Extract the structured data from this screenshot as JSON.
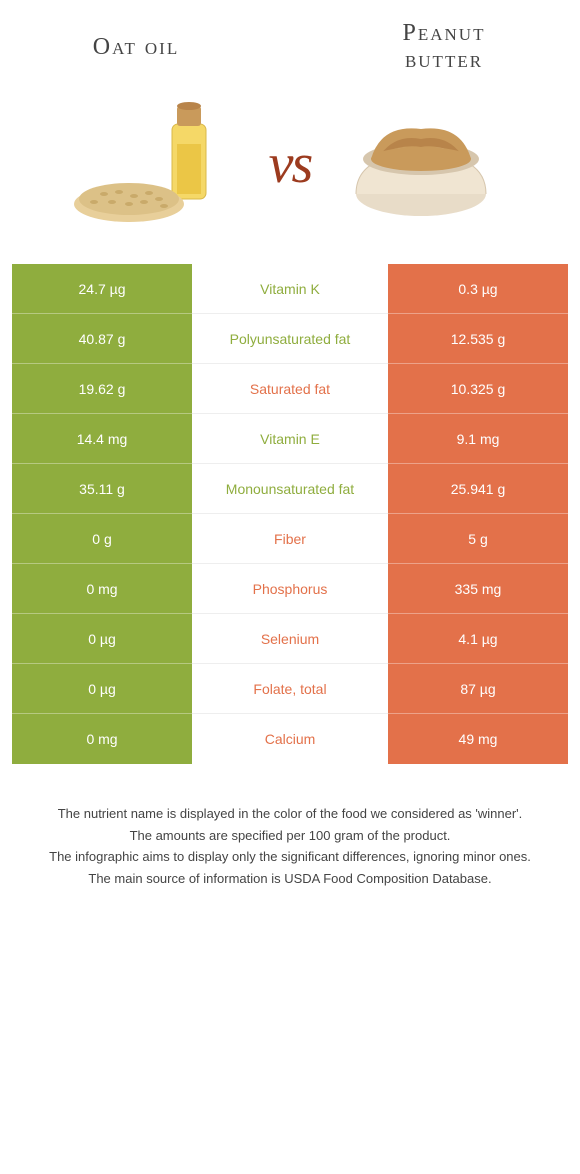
{
  "colors": {
    "left": "#8fad3e",
    "right": "#e3714a",
    "mid_bg": "#ffffff",
    "title_color": "#444444",
    "vs_color": "#9c3b1f"
  },
  "foods": {
    "left": {
      "title": "Oat oil"
    },
    "right": {
      "title": "Peanut\nbutter"
    }
  },
  "vs_label": "vs",
  "nutrients": [
    {
      "name": "Vitamin K",
      "left": "24.7 µg",
      "right": "0.3 µg",
      "winner": "left"
    },
    {
      "name": "Polyunsaturated fat",
      "left": "40.87 g",
      "right": "12.535 g",
      "winner": "left"
    },
    {
      "name": "Saturated fat",
      "left": "19.62 g",
      "right": "10.325 g",
      "winner": "right"
    },
    {
      "name": "Vitamin E",
      "left": "14.4 mg",
      "right": "9.1 mg",
      "winner": "left"
    },
    {
      "name": "Monounsaturated fat",
      "left": "35.11 g",
      "right": "25.941 g",
      "winner": "left"
    },
    {
      "name": "Fiber",
      "left": "0 g",
      "right": "5 g",
      "winner": "right"
    },
    {
      "name": "Phosphorus",
      "left": "0 mg",
      "right": "335 mg",
      "winner": "right"
    },
    {
      "name": "Selenium",
      "left": "0 µg",
      "right": "4.1 µg",
      "winner": "right"
    },
    {
      "name": "Folate, total",
      "left": "0 µg",
      "right": "87 µg",
      "winner": "right"
    },
    {
      "name": "Calcium",
      "left": "0 mg",
      "right": "49 mg",
      "winner": "right"
    }
  ],
  "footer": [
    "The nutrient name is displayed in the color of the food we considered as 'winner'.",
    "The amounts are specified per 100 gram of the product.",
    "The infographic aims to display only the significant differences, ignoring minor ones.",
    "The main source of information is USDA Food Composition Database."
  ]
}
